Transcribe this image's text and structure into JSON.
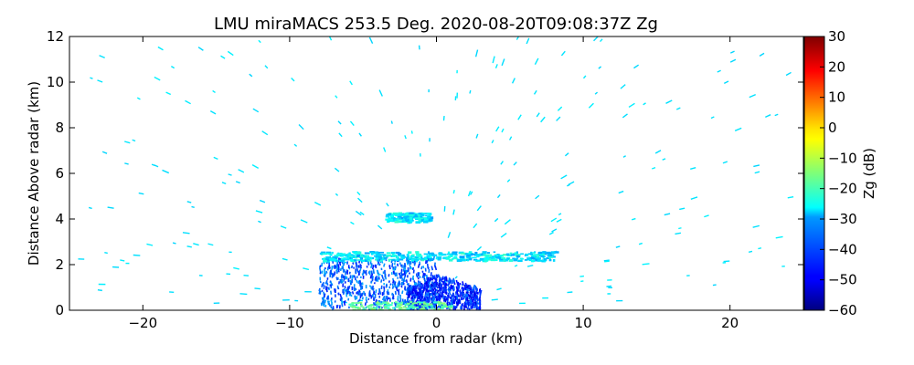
{
  "chart_data": {
    "type": "heatmap",
    "title": "LMU miraMACS 253.5 Deg. 2020-08-20T09:08:37Z  Zg",
    "xlabel": "Distance from radar (km)",
    "ylabel": "Distance Above radar  (km)",
    "xlim": [
      -25,
      25
    ],
    "ylim": [
      0,
      12
    ],
    "xticks": [
      -20,
      -10,
      0,
      10,
      20
    ],
    "yticks": [
      0,
      2,
      4,
      6,
      8,
      10,
      12
    ],
    "grid": false,
    "colorbar": {
      "label": "Zg (dB)",
      "colormap": "jet",
      "vmin": -60,
      "vmax": 30,
      "ticks": [
        30,
        20,
        10,
        0,
        -10,
        -20,
        -30,
        -40,
        -50,
        -60
      ]
    },
    "features": [
      {
        "x_range": [
          -8,
          0
        ],
        "y_range": [
          0,
          2.2
        ],
        "z": -40
      },
      {
        "x_range": [
          -2,
          3
        ],
        "y_range": [
          0,
          1.5
        ],
        "z": -45
      },
      {
        "x_range": [
          -8,
          8
        ],
        "y_range": [
          2.2,
          2.6
        ],
        "z": -28
      },
      {
        "x_range": [
          -3.5,
          -0.5
        ],
        "y_range": [
          3.9,
          4.3
        ],
        "z": -28
      }
    ]
  }
}
